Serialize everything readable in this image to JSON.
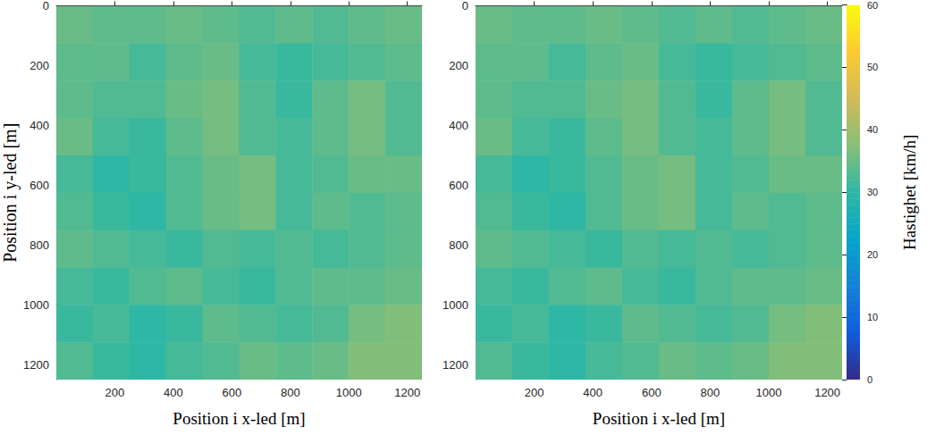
{
  "chart_data": [
    {
      "type": "heatmap",
      "xlabel": "Position i x-led [m]",
      "ylabel": "Position i y-led [m]",
      "xlim": [
        0,
        1250
      ],
      "ylim": [
        0,
        1250
      ],
      "xticks": [
        200,
        400,
        600,
        800,
        1000,
        1200
      ],
      "yticks": [
        0,
        200,
        400,
        600,
        800,
        1000,
        1200
      ],
      "x_edges": [
        0,
        125,
        250,
        375,
        500,
        625,
        750,
        875,
        1000,
        1125,
        1250
      ],
      "y_edges": [
        0,
        125,
        250,
        375,
        500,
        625,
        750,
        875,
        1000,
        1125,
        1250
      ],
      "values": [
        [
          35,
          34,
          34,
          35,
          34,
          33,
          34,
          33,
          34,
          35
        ],
        [
          34,
          34,
          32,
          34,
          35,
          32,
          31,
          32,
          33,
          34
        ],
        [
          34,
          33,
          33,
          35,
          36,
          33,
          31,
          34,
          36,
          33
        ],
        [
          35,
          32,
          31,
          34,
          36,
          33,
          32,
          34,
          36,
          33
        ],
        [
          32,
          30,
          31,
          33,
          35,
          36,
          32,
          33,
          35,
          35
        ],
        [
          33,
          31,
          30,
          33,
          35,
          36,
          32,
          34,
          33,
          34
        ],
        [
          34,
          33,
          32,
          31,
          33,
          32,
          33,
          32,
          33,
          34
        ],
        [
          32,
          31,
          33,
          34,
          32,
          31,
          33,
          34,
          34,
          35
        ],
        [
          31,
          32,
          30,
          31,
          34,
          33,
          32,
          33,
          36,
          37
        ],
        [
          33,
          31,
          30,
          32,
          33,
          35,
          34,
          35,
          37,
          37
        ]
      ]
    },
    {
      "type": "heatmap",
      "xlabel": "Position i x-led [m]",
      "xlim": [
        0,
        1250
      ],
      "ylim": [
        0,
        1250
      ],
      "xticks": [
        200,
        400,
        600,
        800,
        1000,
        1200
      ],
      "yticks": [
        0,
        200,
        400,
        600,
        800,
        1000,
        1200
      ],
      "x_edges": [
        0,
        125,
        250,
        375,
        500,
        625,
        750,
        875,
        1000,
        1125,
        1250
      ],
      "y_edges": [
        0,
        125,
        250,
        375,
        500,
        625,
        750,
        875,
        1000,
        1125,
        1250
      ],
      "values": [
        [
          35,
          34,
          34,
          35,
          34,
          33,
          34,
          33,
          34,
          35
        ],
        [
          34,
          34,
          32,
          34,
          35,
          32,
          31,
          32,
          33,
          34
        ],
        [
          34,
          33,
          33,
          35,
          36,
          33,
          31,
          34,
          36,
          33
        ],
        [
          35,
          32,
          31,
          34,
          36,
          33,
          32,
          34,
          36,
          33
        ],
        [
          32,
          30,
          31,
          33,
          35,
          36,
          32,
          33,
          35,
          35
        ],
        [
          33,
          31,
          30,
          33,
          35,
          36,
          32,
          34,
          33,
          34
        ],
        [
          34,
          33,
          32,
          31,
          33,
          32,
          33,
          32,
          33,
          34
        ],
        [
          32,
          31,
          33,
          34,
          32,
          31,
          33,
          34,
          34,
          35
        ],
        [
          31,
          32,
          30,
          31,
          34,
          33,
          32,
          33,
          36,
          37
        ],
        [
          33,
          31,
          30,
          32,
          33,
          35,
          34,
          35,
          37,
          37
        ]
      ],
      "colorbar": {
        "label": "Hastighet [km/h]",
        "range": [
          0,
          60
        ],
        "ticks": [
          0,
          10,
          20,
          30,
          40,
          50,
          60
        ]
      }
    }
  ]
}
